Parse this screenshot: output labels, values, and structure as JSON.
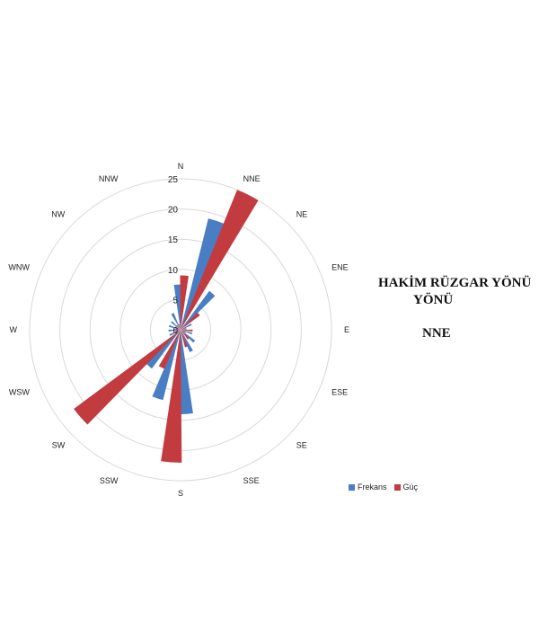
{
  "side_panel": {
    "title_line1": "HAKİM RÜZGAR YÖNÜ",
    "title_line2": "YÖNÜ",
    "value": "NNE"
  },
  "colors": {
    "frekans": "#4a7ec4",
    "guc": "#c23b3f",
    "grid": "#d9d9d9"
  },
  "chart_data": {
    "type": "radar",
    "subtype": "wind-rose",
    "directions": [
      "N",
      "NNE",
      "NE",
      "ENE",
      "E",
      "ESE",
      "SE",
      "SSE",
      "S",
      "SSW",
      "SW",
      "WSW",
      "W",
      "WNW",
      "NW",
      "NNW"
    ],
    "bins": [
      {
        "dir": "N",
        "values": [
          [
            7.5,
            9
          ],
          [
            9,
            3
          ],
          [
            2,
            9
          ]
        ]
      },
      {
        "dir": "NNE",
        "values": [
          [
            19,
            21
          ],
          [
            25,
            10
          ],
          [
            5,
            6
          ]
        ]
      },
      {
        "dir": "NE",
        "values": [
          [
            8,
            3
          ],
          [
            4,
            4
          ],
          [
            1,
            2
          ]
        ]
      },
      {
        "dir": "ENE",
        "values": [
          [
            2,
            1
          ],
          [
            1,
            2
          ]
        ]
      },
      {
        "dir": "E",
        "values": [
          [
            1,
            2
          ],
          [
            2,
            1
          ]
        ]
      },
      {
        "dir": "ESE",
        "values": [
          [
            2,
            1
          ],
          [
            1,
            2
          ]
        ]
      },
      {
        "dir": "SE",
        "values": [
          [
            3,
            2
          ],
          [
            2,
            3
          ]
        ]
      },
      {
        "dir": "SSE",
        "values": [
          [
            4,
            2
          ],
          [
            3,
            4
          ]
        ]
      },
      {
        "dir": "S",
        "values": [
          [
            14,
            9
          ],
          [
            22,
            14
          ],
          [
            5,
            6
          ]
        ]
      },
      {
        "dir": "SSW",
        "values": [
          [
            12,
            4
          ],
          [
            7,
            12
          ]
        ]
      },
      {
        "dir": "SW",
        "values": [
          [
            8,
            22
          ],
          [
            5,
            3
          ]
        ]
      },
      {
        "dir": "WSW",
        "values": [
          [
            2,
            1
          ],
          [
            1,
            2
          ]
        ]
      },
      {
        "dir": "W",
        "values": [
          [
            2,
            1
          ],
          [
            1,
            2
          ]
        ]
      },
      {
        "dir": "WNW",
        "values": [
          [
            2,
            1
          ],
          [
            1,
            2
          ]
        ]
      },
      {
        "dir": "NW",
        "values": [
          [
            2,
            1
          ],
          [
            1,
            2
          ]
        ]
      },
      {
        "dir": "NNW",
        "values": [
          [
            3,
            1
          ],
          [
            1,
            3
          ]
        ]
      }
    ],
    "series": [
      {
        "name": "Frekans",
        "values": [
          [
            7.5,
            19,
            8,
            2,
            1,
            2,
            3,
            4,
            14,
            12,
            8,
            2,
            2,
            2,
            2,
            3
          ]
        ]
      },
      {
        "name": "Güç",
        "values": [
          [
            9,
            25,
            4,
            1,
            2,
            1,
            2,
            3,
            22,
            7,
            22,
            1,
            1,
            1,
            1,
            1
          ]
        ]
      }
    ],
    "r_ticks": [
      "0",
      "5",
      "10",
      "15",
      "20",
      "25"
    ],
    "r_max": 25,
    "grid": true,
    "legend_position": "bottom-right"
  },
  "legend": {
    "frekans": "Frekans",
    "guc": "Güç"
  }
}
